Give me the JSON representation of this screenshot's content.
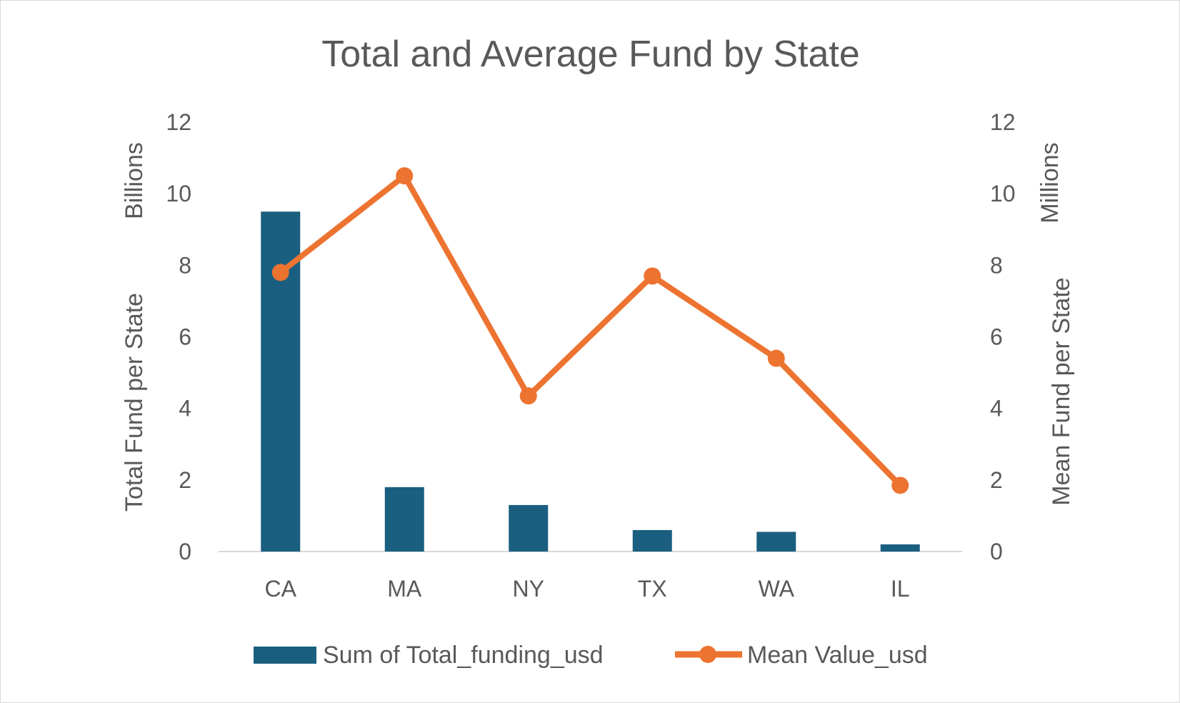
{
  "chart_data": {
    "type": "bar",
    "title": "Total and Average Fund by State",
    "categories": [
      "CA",
      "MA",
      "NY",
      "TX",
      "WA",
      "IL"
    ],
    "series": [
      {
        "name": "Sum of Total_funding_usd",
        "type": "bar",
        "axis": "left",
        "values": [
          9.5,
          1.8,
          1.3,
          0.6,
          0.55,
          0.2
        ]
      },
      {
        "name": "Mean Value_usd",
        "type": "line",
        "axis": "right",
        "values": [
          7.8,
          10.5,
          4.35,
          7.7,
          5.4,
          1.85
        ]
      }
    ],
    "y_left": {
      "label": "Total Fund per State",
      "unit": "Billions",
      "ylim": [
        0,
        12
      ],
      "ticks": [
        0,
        2,
        4,
        6,
        8,
        10,
        12
      ]
    },
    "y_right": {
      "label": "Mean Fund per State",
      "unit": "Millions",
      "ylim": [
        0,
        12
      ],
      "ticks": [
        0,
        2,
        4,
        6,
        8,
        10,
        12
      ]
    },
    "grid": false,
    "legend": "bottom",
    "colors": {
      "bar": "#1a5e80",
      "line": "#ed7331",
      "axis": "#d9d9d9",
      "text": "#595959"
    }
  }
}
